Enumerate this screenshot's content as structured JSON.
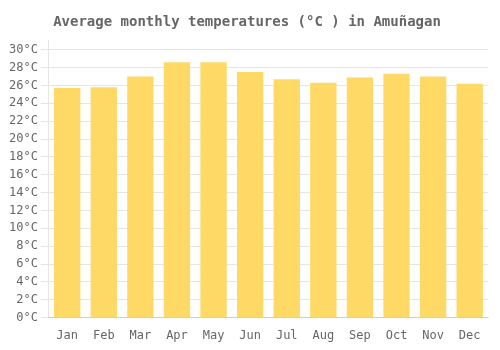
{
  "chart_data": {
    "type": "bar",
    "title": "Average monthly temperatures (°C ) in Amuñagan",
    "categories": [
      "Jan",
      "Feb",
      "Mar",
      "Apr",
      "May",
      "Jun",
      "Jul",
      "Aug",
      "Sep",
      "Oct",
      "Nov",
      "Dec"
    ],
    "values": [
      25.7,
      25.8,
      27.0,
      28.6,
      28.6,
      27.5,
      26.7,
      26.3,
      26.9,
      27.3,
      27.0,
      26.2
    ],
    "color": "#FFD966",
    "ylim": [
      0,
      31
    ],
    "yticks": [
      {
        "value": 0,
        "label": "0°C"
      },
      {
        "value": 2,
        "label": "2°C"
      },
      {
        "value": 4,
        "label": "4°C"
      },
      {
        "value": 6,
        "label": "6°C"
      },
      {
        "value": 8,
        "label": "8°C"
      },
      {
        "value": 10,
        "label": "10°C"
      },
      {
        "value": 12,
        "label": "12°C"
      },
      {
        "value": 14,
        "label": "14°C"
      },
      {
        "value": 16,
        "label": "16°C"
      },
      {
        "value": 18,
        "label": "18°C"
      },
      {
        "value": 20,
        "label": "20°C"
      },
      {
        "value": 22,
        "label": "22°C"
      },
      {
        "value": 24,
        "label": "24°C"
      },
      {
        "value": 26,
        "label": "26°C"
      },
      {
        "value": 28,
        "label": "28°C"
      },
      {
        "value": 30,
        "label": "30°C"
      }
    ],
    "grid": true
  }
}
